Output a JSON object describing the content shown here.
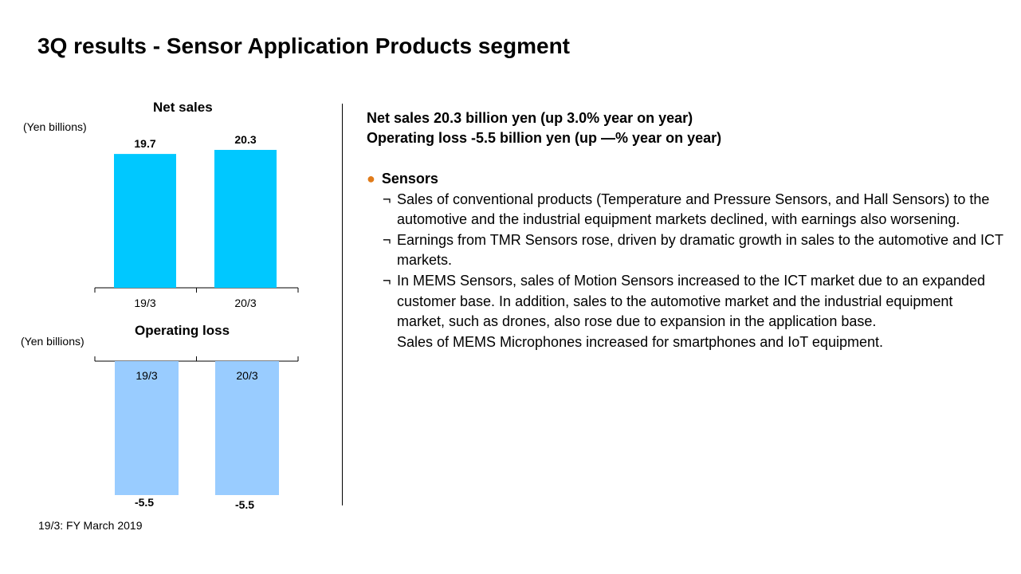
{
  "page": {
    "title": "3Q results - Sensor Application Products segment",
    "footnote": "19/3: FY March 2019"
  },
  "net_sales_chart": {
    "title": "Net sales",
    "unit": "(Yen billions)"
  },
  "operating_chart": {
    "title": "Operating loss",
    "unit": "(Yen billions)"
  },
  "colors": {
    "net_sales_bar": "#00c8ff",
    "operating_bar": "#99ccff",
    "bullet": "#e07b1a"
  },
  "chart_data": [
    {
      "type": "bar",
      "title": "Net sales",
      "ylabel": "(Yen billions)",
      "categories": [
        "19/3",
        "20/3"
      ],
      "values": [
        19.7,
        20.3
      ],
      "value_labels": [
        "19.7",
        "20.3"
      ]
    },
    {
      "type": "bar",
      "title": "Operating loss",
      "ylabel": "(Yen billions)",
      "categories": [
        "19/3",
        "20/3"
      ],
      "values": [
        -5.5,
        -5.5
      ],
      "value_labels": [
        "-5.5",
        "-5.5"
      ]
    }
  ],
  "summary": {
    "line1": "Net sales 20.3 billion yen (up 3.0% year on year)",
    "line2": "Operating loss -5.5 billion yen (up —% year on year)"
  },
  "section": {
    "bullet": "●",
    "heading": "Sensors",
    "item_mark": "¬",
    "items": [
      "Sales of conventional products (Temperature and Pressure Sensors, and Hall Sensors) to the automotive and the industrial equipment markets declined, with earnings also worsening.",
      "Earnings from TMR Sensors rose, driven by dramatic growth in sales to the automotive and ICT markets.",
      "In MEMS Sensors, sales of Motion Sensors increased to the ICT market due to an expanded customer base. In addition, sales to the automotive market and the industrial equipment market, such as drones, also rose due to expansion in the application base."
    ],
    "extra": "Sales of MEMS Microphones increased for smartphones and IoT equipment."
  }
}
